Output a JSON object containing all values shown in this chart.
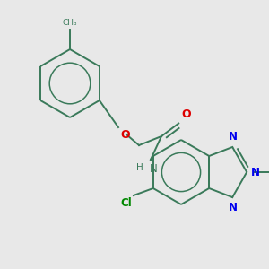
{
  "background_color": "#e8e8e8",
  "bond_color": "#3a7a5a",
  "nitrogen_color": "#0000ee",
  "oxygen_color": "#dd0000",
  "chlorine_color": "#008800",
  "line_width": 1.4,
  "figsize": [
    3.0,
    3.0
  ],
  "dpi": 100,
  "xlim": [
    0,
    300
  ],
  "ylim": [
    0,
    300
  ]
}
